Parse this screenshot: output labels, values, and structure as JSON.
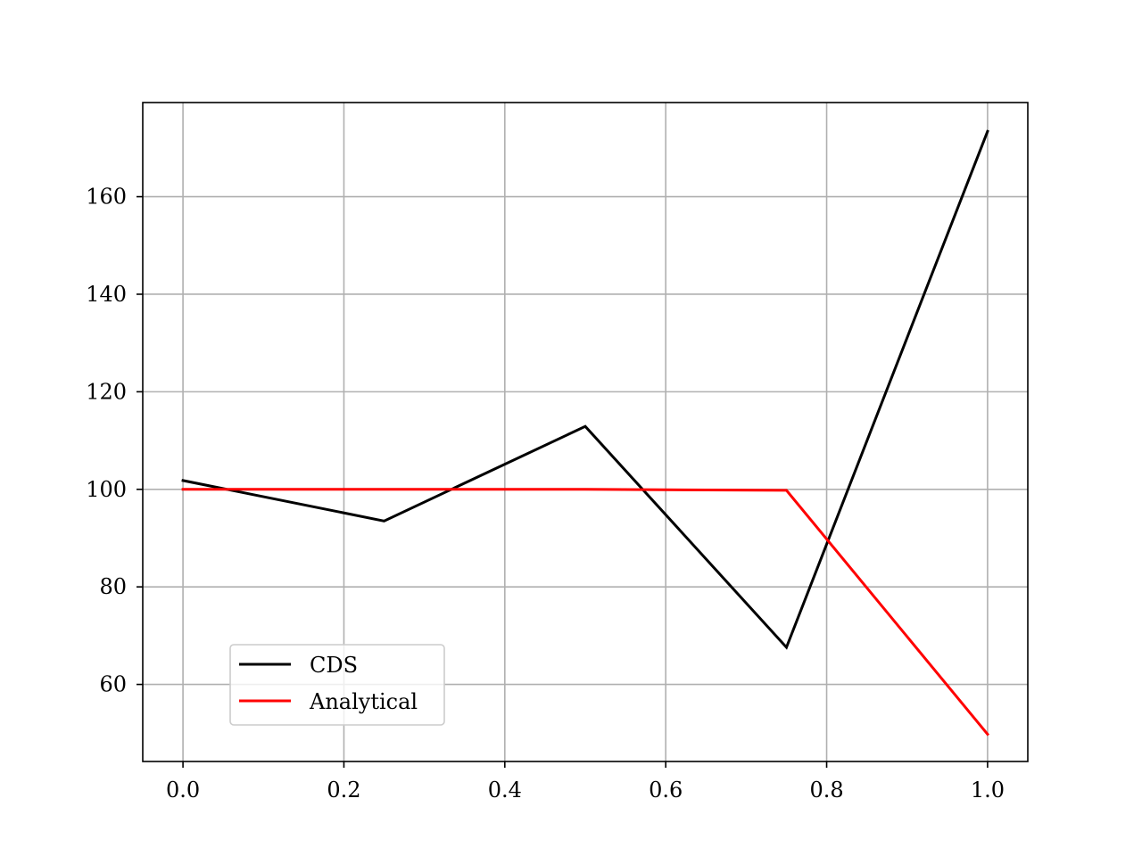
{
  "chart_data": {
    "type": "line",
    "title": "",
    "xlabel": "",
    "ylabel": "",
    "x": [
      0.0,
      0.25,
      0.5,
      0.75,
      1.0
    ],
    "series": [
      {
        "name": "CDS",
        "color": "#000000",
        "values": [
          101.8,
          93.5,
          112.9,
          67.6,
          173.4
        ]
      },
      {
        "name": "Analytical",
        "color": "#ff0000",
        "values": [
          100.0,
          100.0,
          100.0,
          99.8,
          49.8
        ]
      }
    ],
    "xlim": [
      -0.05,
      1.05
    ],
    "ylim": [
      44.2,
      179.3
    ],
    "xticks": [
      0.0,
      0.2,
      0.4,
      0.6,
      0.8,
      1.0
    ],
    "xtick_labels": [
      "0.0",
      "0.2",
      "0.4",
      "0.6",
      "0.8",
      "1.0"
    ],
    "yticks": [
      60,
      80,
      100,
      120,
      140,
      160
    ],
    "ytick_labels": [
      "60",
      "80",
      "100",
      "120",
      "140",
      "160"
    ],
    "grid": true,
    "grid_color": "#b0b0b0",
    "legend_position": "lower-left"
  }
}
